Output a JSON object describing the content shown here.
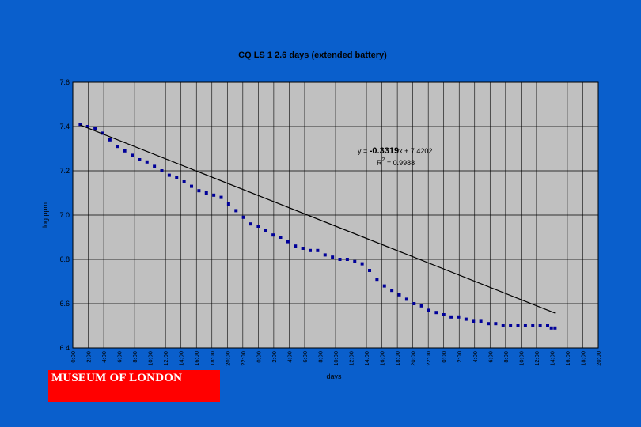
{
  "logo": {
    "text": "MUSEUM OF LONDON",
    "color": "#ff0000"
  },
  "chart_data": {
    "type": "scatter",
    "title": "CQ LS 1 2.6 days (extended battery)",
    "xlabel": "days",
    "ylabel": "log ppm",
    "ylim": [
      6.4,
      7.6
    ],
    "y_ticks": [
      "6.4",
      "6.6",
      "6.8",
      "7.0",
      "7.2",
      "7.4",
      "7.6"
    ],
    "x_tick_labels": [
      "0:00",
      "2:00",
      "4:00",
      "6:00",
      "8:00",
      "10:00",
      "12:00",
      "14:00",
      "16:00",
      "18:00",
      "20:00",
      "22:00",
      "0:00",
      "2:00",
      "4:00",
      "6:00",
      "8:00",
      "10:00",
      "12:00",
      "14:00",
      "16:00",
      "18:00",
      "20:00",
      "22:00",
      "0:00",
      "2:00",
      "4:00",
      "6:00",
      "8:00",
      "10:00",
      "12:00",
      "14:00",
      "16:00",
      "18:00",
      "20:00"
    ],
    "xlim": [
      0,
      2.833
    ],
    "grid": true,
    "plot_background": "#c0c0c0",
    "series_color": "#000099",
    "trendline": {
      "slope": -0.3319,
      "intercept": 7.4202,
      "x_range": [
        0.04,
        2.6
      ],
      "equation_prefix": "y = ",
      "equation_slope": "-0.3319",
      "equation_suffix": "x + 7.4202",
      "r2_prefix": "R",
      "r2_exp": "2",
      "r2_value": " = 0.9988"
    },
    "x": [
      0.04,
      0.08,
      0.12,
      0.16,
      0.2,
      0.24,
      0.28,
      0.32,
      0.36,
      0.4,
      0.44,
      0.48,
      0.52,
      0.56,
      0.6,
      0.64,
      0.68,
      0.72,
      0.76,
      0.8,
      0.84,
      0.88,
      0.92,
      0.96,
      1.0,
      1.04,
      1.08,
      1.12,
      1.16,
      1.2,
      1.24,
      1.28,
      1.32,
      1.36,
      1.4,
      1.44,
      1.48,
      1.52,
      1.56,
      1.6,
      1.64,
      1.68,
      1.72,
      1.76,
      1.8,
      1.84,
      1.88,
      1.92,
      1.96,
      2.0,
      2.04,
      2.08,
      2.12,
      2.16,
      2.2,
      2.24,
      2.28,
      2.32,
      2.36,
      2.4,
      2.44,
      2.48,
      2.52,
      2.56,
      2.58,
      2.6
    ],
    "y": [
      7.41,
      7.4,
      7.39,
      7.37,
      7.34,
      7.31,
      7.29,
      7.27,
      7.25,
      7.24,
      7.22,
      7.2,
      7.18,
      7.17,
      7.15,
      7.13,
      7.11,
      7.1,
      7.09,
      7.08,
      7.05,
      7.02,
      6.99,
      6.96,
      6.95,
      6.93,
      6.91,
      6.9,
      6.88,
      6.86,
      6.85,
      6.84,
      6.84,
      6.82,
      6.81,
      6.8,
      6.8,
      6.79,
      6.78,
      6.75,
      6.71,
      6.68,
      6.66,
      6.64,
      6.62,
      6.6,
      6.59,
      6.57,
      6.56,
      6.55,
      6.54,
      6.54,
      6.53,
      6.52,
      6.52,
      6.51,
      6.51,
      6.5,
      6.5,
      6.5,
      6.5,
      6.5,
      6.5,
      6.5,
      6.49,
      6.49
    ]
  }
}
